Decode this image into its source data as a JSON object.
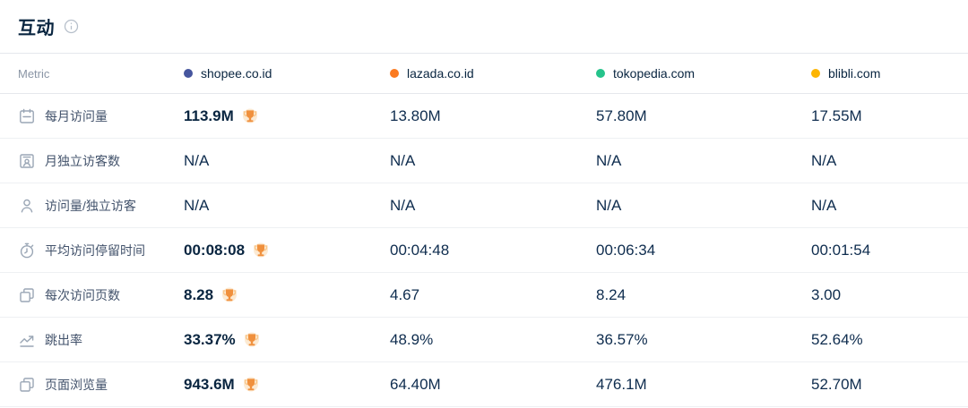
{
  "title": "互动",
  "info_icon": "info-icon",
  "table": {
    "metric_header": "Metric",
    "columns": [
      {
        "domain": "shopee.co.id",
        "dot_color": "#46569E"
      },
      {
        "domain": "lazada.co.id",
        "dot_color": "#FB7A20"
      },
      {
        "domain": "tokopedia.com",
        "dot_color": "#25C38B"
      },
      {
        "domain": "blibli.com",
        "dot_color": "#FDB501"
      }
    ],
    "rows": [
      {
        "icon": "calendar-icon",
        "metric": "每月访问量",
        "values": [
          "113.9M",
          "13.80M",
          "57.80M",
          "17.55M"
        ],
        "winner": 0
      },
      {
        "icon": "id-card-icon",
        "metric": "月独立访客数",
        "values": [
          "N/A",
          "N/A",
          "N/A",
          "N/A"
        ],
        "winner": -1
      },
      {
        "icon": "person-icon",
        "metric": "访问量/独立访客",
        "values": [
          "N/A",
          "N/A",
          "N/A",
          "N/A"
        ],
        "winner": -1
      },
      {
        "icon": "stopwatch-icon",
        "metric": "平均访问停留时间",
        "values": [
          "00:08:08",
          "00:04:48",
          "00:06:34",
          "00:01:54"
        ],
        "winner": 0
      },
      {
        "icon": "pages-icon",
        "metric": "每次访问页数",
        "values": [
          "8.28",
          "4.67",
          "8.24",
          "3.00"
        ],
        "winner": 0
      },
      {
        "icon": "bounce-icon",
        "metric": "跳出率",
        "values": [
          "33.37%",
          "48.9%",
          "36.57%",
          "52.64%"
        ],
        "winner": 0
      },
      {
        "icon": "pages-icon",
        "metric": "页面浏览量",
        "values": [
          "943.6M",
          "64.40M",
          "476.1M",
          "52.70M"
        ],
        "winner": 0
      }
    ]
  },
  "colors": {
    "value_text": "#092540",
    "metric_label": "#42526b",
    "header_text": "#8a95a5",
    "border": "#e5e8ec",
    "trophy_main": "#F0903D",
    "trophy_light": "#F9C88E",
    "icon_stroke": "#9AA6B5"
  }
}
